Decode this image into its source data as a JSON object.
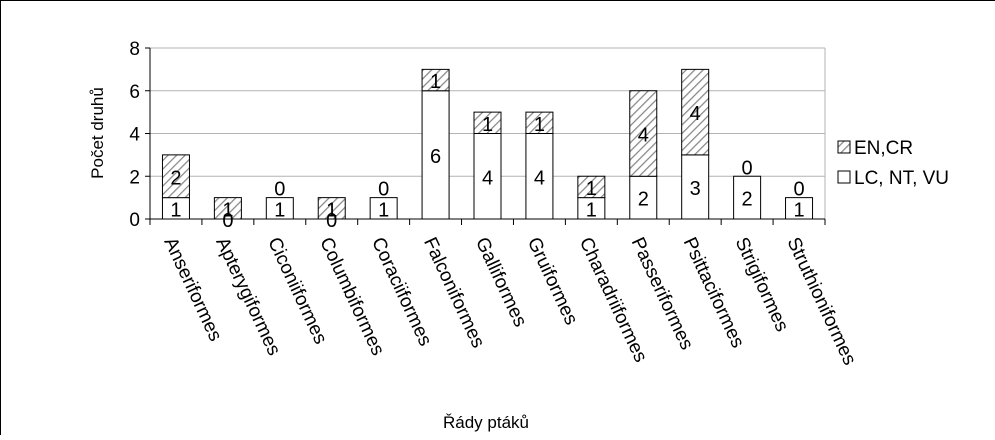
{
  "chart_data": {
    "type": "bar",
    "stacked": true,
    "title": "",
    "xlabel": "Řády ptáků",
    "ylabel": "Počet druhů",
    "ylim": [
      0,
      8
    ],
    "yticks": [
      "0",
      "2",
      "4",
      "6",
      "8"
    ],
    "grid": true,
    "legend_position": "right",
    "categories": [
      "Anseriformes",
      "Apterygiformes",
      "Ciconiiformes",
      "Columbiformes",
      "Coraciiformes",
      "Falconiformes",
      "Galliformes",
      "Gruiformes",
      "Charadriiformes",
      "Passeriformes",
      "Psittaciformes",
      "Strigiformes",
      "Struthioniformes"
    ],
    "series": [
      {
        "name": "LC, NT, VU",
        "values": [
          1,
          0,
          1,
          0,
          1,
          6,
          4,
          4,
          1,
          2,
          3,
          2,
          1
        ],
        "pattern": "plain"
      },
      {
        "name": "EN,CR",
        "values": [
          2,
          1,
          0,
          1,
          0,
          1,
          1,
          1,
          1,
          4,
          4,
          0,
          0
        ],
        "pattern": "hatched"
      }
    ],
    "colors": {
      "bar_fill": "#ffffff",
      "bar_stroke": "#000000",
      "hatch": "#888888",
      "grid": "#b3b3b3"
    }
  }
}
